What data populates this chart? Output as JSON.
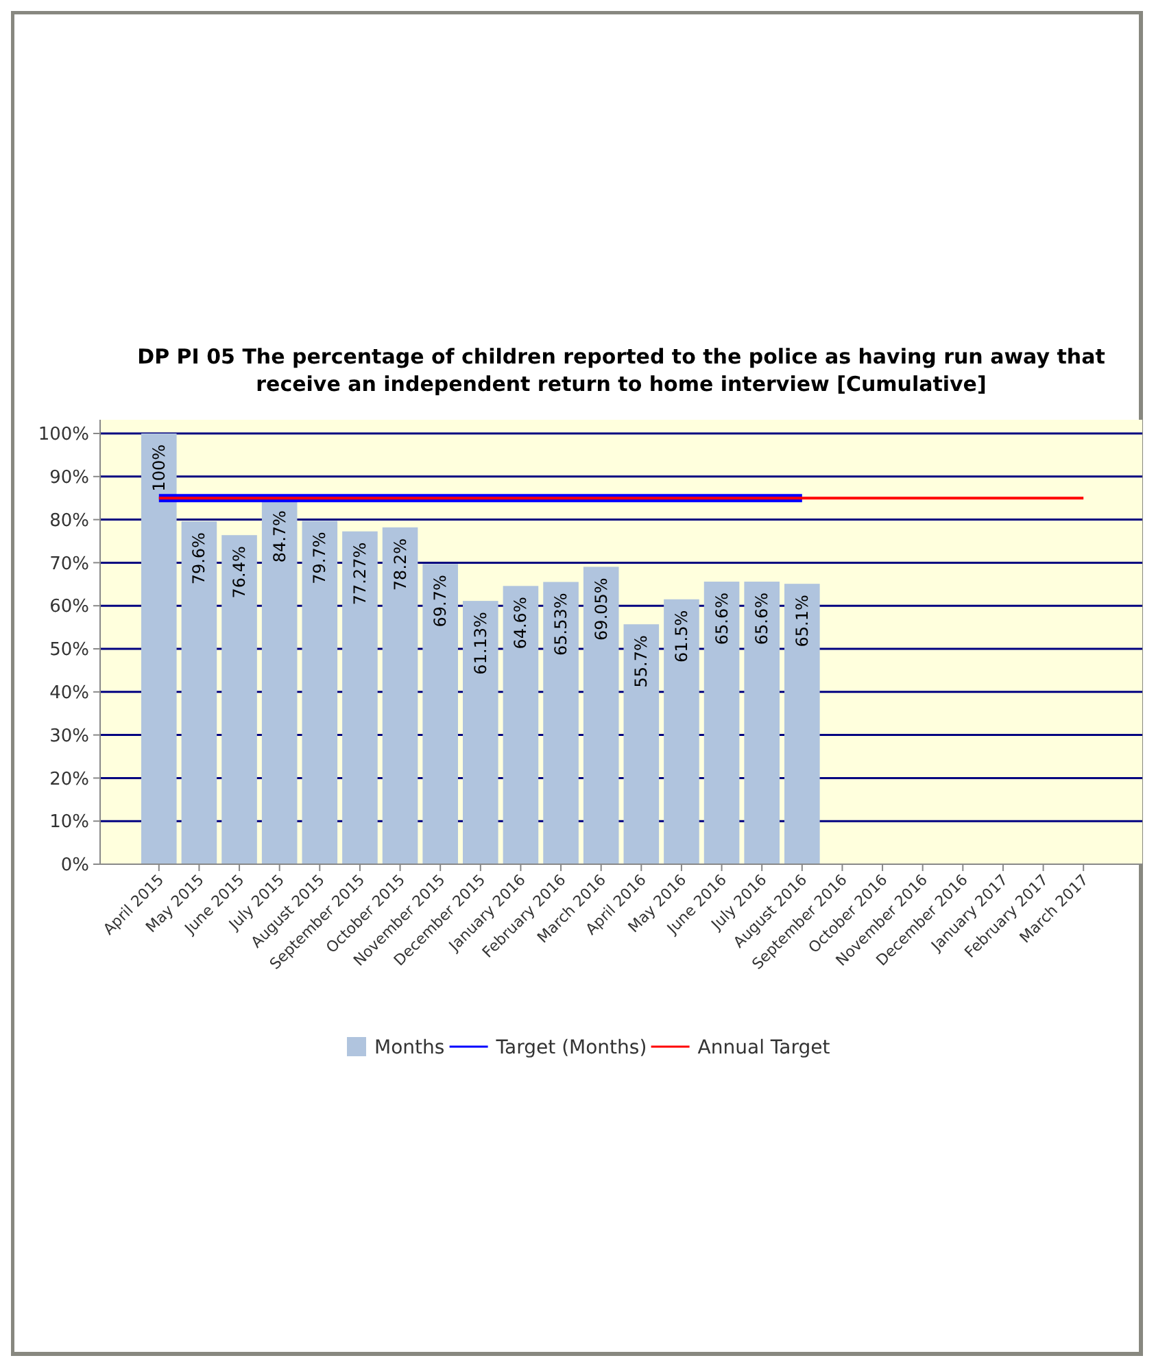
{
  "chart_data": {
    "type": "bar",
    "title": "DP PI 05 The percentage of children reported to the police as having run away that receive an independent return to home interview [Cumulative]",
    "categories": [
      "April 2015",
      "May 2015",
      "June 2015",
      "July 2015",
      "August 2015",
      "September 2015",
      "October 2015",
      "November 2015",
      "December 2015",
      "January 2016",
      "February 2016",
      "March 2016",
      "April 2016",
      "May 2016",
      "June 2016",
      "July 2016",
      "August 2016",
      "September 2016",
      "October 2016",
      "November 2016",
      "December 2016",
      "January 2017",
      "February 2017",
      "March 2017"
    ],
    "series": [
      {
        "name": "Months",
        "color": "#b0c4de",
        "values": [
          100,
          79.6,
          76.4,
          84.7,
          79.7,
          77.27,
          78.2,
          69.7,
          61.13,
          64.6,
          65.53,
          69.05,
          55.7,
          61.5,
          65.6,
          65.6,
          65.1,
          null,
          null,
          null,
          null,
          null,
          null,
          null
        ],
        "value_labels": [
          "100%",
          "79.6%",
          "76.4%",
          "84.7%",
          "79.7%",
          "77.27%",
          "78.2%",
          "69.7%",
          "61.13%",
          "64.6%",
          "65.53%",
          "69.05%",
          "55.7%",
          "61.5%",
          "65.6%",
          "65.6%",
          "65.1%",
          null,
          null,
          null,
          null,
          null,
          null,
          null
        ]
      },
      {
        "name": "Target (Months)",
        "type": "line",
        "color": "#0000ff",
        "values": [
          85,
          85,
          85,
          85,
          85,
          85,
          85,
          85,
          85,
          85,
          85,
          85,
          85,
          85,
          85,
          85,
          85,
          null,
          null,
          null,
          null,
          null,
          null,
          null
        ]
      },
      {
        "name": "Annual Target",
        "type": "line",
        "color": "#ff0000",
        "values": [
          85,
          85,
          85,
          85,
          85,
          85,
          85,
          85,
          85,
          85,
          85,
          85,
          85,
          85,
          85,
          85,
          85,
          85,
          85,
          85,
          85,
          85,
          85,
          85
        ]
      }
    ],
    "ylim": [
      0,
      100
    ],
    "yticks": [
      {
        "value": 0,
        "label": "0%"
      },
      {
        "value": 10,
        "label": "10%"
      },
      {
        "value": 20,
        "label": "20%"
      },
      {
        "value": 30,
        "label": "30%"
      },
      {
        "value": 40,
        "label": "40%"
      },
      {
        "value": 50,
        "label": "50%"
      },
      {
        "value": 60,
        "label": "60%"
      },
      {
        "value": 70,
        "label": "70%"
      },
      {
        "value": 80,
        "label": "80%"
      },
      {
        "value": 90,
        "label": "90%"
      },
      {
        "value": 100,
        "label": "100%"
      }
    ],
    "grid": "y",
    "legend": "bottom",
    "marker": "none",
    "line_style": "solid"
  }
}
